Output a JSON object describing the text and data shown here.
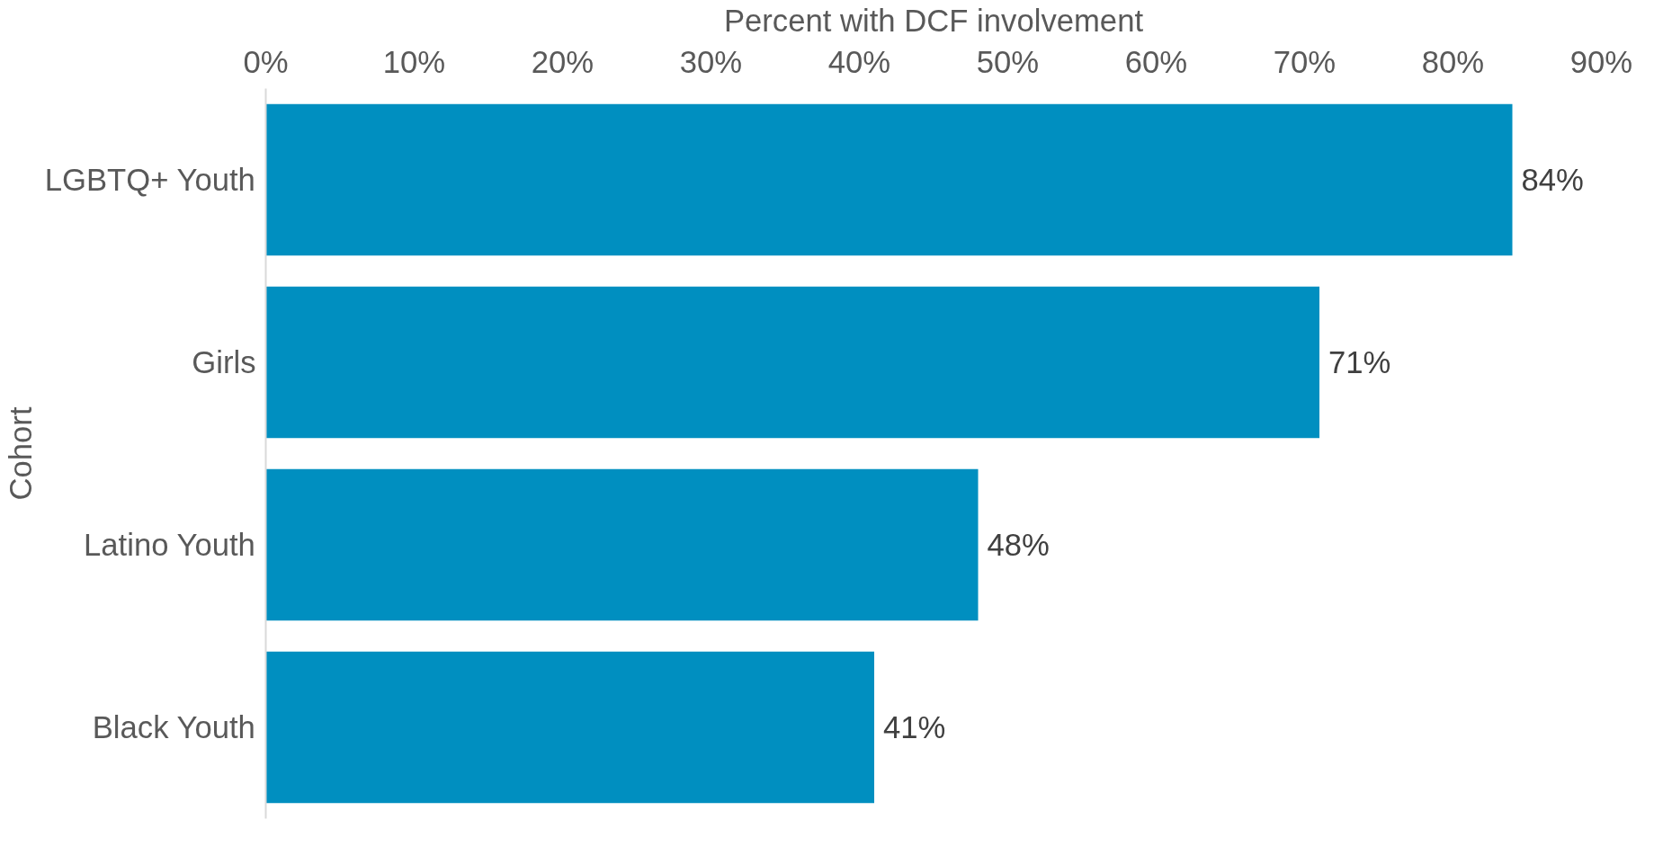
{
  "chart_data": {
    "type": "bar",
    "orientation": "horizontal",
    "xlabel": "Percent with DCF involvement",
    "ylabel": "Cohort",
    "categories": [
      "LGBTQ+ Youth",
      "Girls",
      "Latino Youth",
      "Black Youth"
    ],
    "values": [
      84,
      71,
      48,
      41
    ],
    "color": "#008fc0",
    "value_labels": [
      "84%",
      "71%",
      "48%",
      "41%"
    ],
    "xlim": [
      0,
      90
    ],
    "xticks": [
      {
        "value": 0,
        "label": "0%"
      },
      {
        "value": 10,
        "label": "10%"
      },
      {
        "value": 20,
        "label": "20%"
      },
      {
        "value": 30,
        "label": "30%"
      },
      {
        "value": 40,
        "label": "40%"
      },
      {
        "value": 50,
        "label": "50%"
      },
      {
        "value": 60,
        "label": "60%"
      },
      {
        "value": 70,
        "label": "70%"
      },
      {
        "value": 80,
        "label": "80%"
      },
      {
        "value": 90,
        "label": "90%"
      }
    ],
    "grid": false
  }
}
